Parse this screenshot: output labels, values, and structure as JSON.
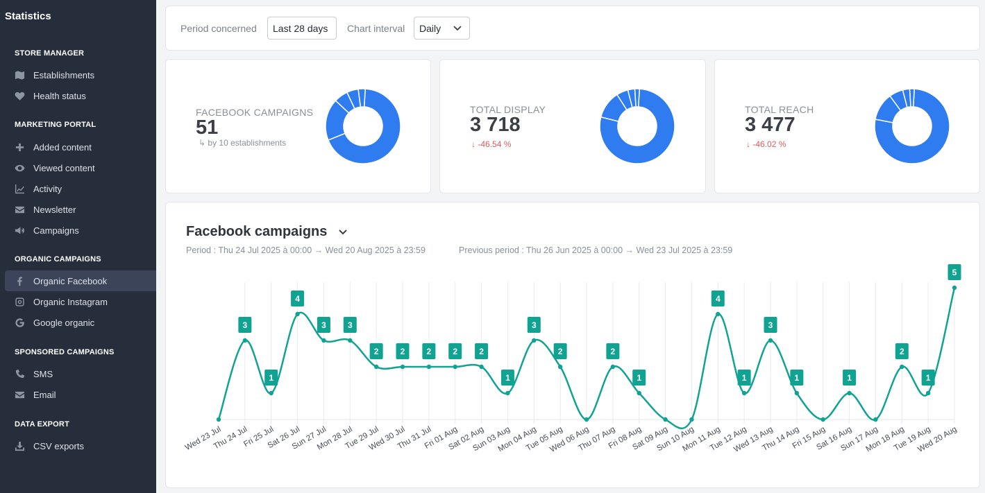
{
  "sidebar": {
    "title": "Statistics",
    "sections": {
      "store_manager": "STORE MANAGER",
      "marketing_portal": "MARKETING PORTAL",
      "organic_campaigns": "ORGANIC CAMPAIGNS",
      "sponsored_campaigns": "SPONSORED CAMPAIGNS",
      "data_export": "DATA EXPORT"
    },
    "items": {
      "establishments": "Establishments",
      "health_status": "Health status",
      "added_content": "Added content",
      "viewed_content": "Viewed content",
      "activity": "Activity",
      "newsletter": "Newsletter",
      "campaigns": "Campaigns",
      "organic_facebook": "Organic Facebook",
      "organic_instagram": "Organic Instagram",
      "google_organic": "Google organic",
      "sms": "SMS",
      "email": "Email",
      "csv_exports": "CSV exports"
    },
    "active_item": "organic_facebook"
  },
  "filters": {
    "period_label": "Period concerned",
    "period_value": "Last 28 days",
    "interval_label": "Chart interval",
    "interval_value": "Daily"
  },
  "kpis": {
    "campaigns": {
      "label": "FACEBOOK CAMPAIGNS",
      "value": "51",
      "sub": "by 10 establishments",
      "donut": [
        0.68,
        0.18,
        0.06,
        0.05,
        0.03
      ]
    },
    "display": {
      "label": "TOTAL DISPLAY",
      "value": "3 718",
      "delta": "-46.54 %",
      "donut": [
        0.78,
        0.12,
        0.05,
        0.03,
        0.02
      ]
    },
    "reach": {
      "label": "TOTAL REACH",
      "value": "3 477",
      "delta": "-46.02 %",
      "donut": [
        0.77,
        0.12,
        0.06,
        0.03,
        0.02
      ]
    }
  },
  "colors": {
    "accent": "#2f7bf0",
    "line": "#10a391",
    "delta_down": "#e05b5b",
    "sidebar_bg": "#262e3b"
  },
  "chart": {
    "title": "Facebook campaigns",
    "period": "Period :  Thu 24 Jul 2025 à 00:00 → Wed 20 Aug 2025 à 23:59",
    "previous_period": "Previous period :  Thu 26 Jun 2025 à 00:00 → Wed 23 Jul 2025 à 23:59"
  },
  "chart_data": {
    "type": "line",
    "x": [
      "Wed 23 Jul",
      "Thu 24 Jul",
      "Fri 25 Jul",
      "Sat 26 Jul",
      "Sun 27 Jul",
      "Mon 28 Jul",
      "Tue 29 Jul",
      "Wed 30 Jul",
      "Thu 31 Jul",
      "Fri 01 Aug",
      "Sat 02 Aug",
      "Sun 03 Aug",
      "Mon 04 Aug",
      "Tue 05 Aug",
      "Wed 06 Aug",
      "Thu 07 Aug",
      "Fri 08 Aug",
      "Sat 09 Aug",
      "Sun 10 Aug",
      "Mon 11 Aug",
      "Tue 12 Aug",
      "Wed 13 Aug",
      "Thu 14 Aug",
      "Fri 15 Aug",
      "Sat 16 Aug",
      "Sun 17 Aug",
      "Mon 18 Aug",
      "Tue 19 Aug",
      "Wed 20 Aug"
    ],
    "y": [
      0,
      3,
      1,
      4,
      3,
      3,
      2,
      2,
      2,
      2,
      2,
      1,
      3,
      2,
      0,
      2,
      1,
      0,
      0,
      4,
      1,
      3,
      1,
      0,
      1,
      0,
      2,
      1,
      5
    ],
    "ylim": [
      0,
      5
    ],
    "grid": "vertical",
    "legend": "none"
  }
}
